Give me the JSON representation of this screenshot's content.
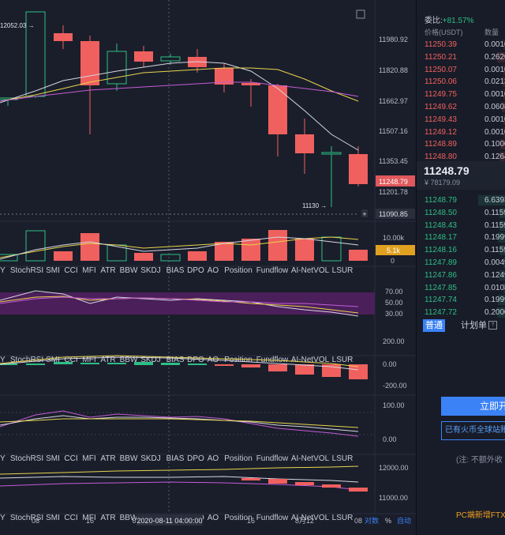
{
  "chart": {
    "price_axis": [
      "11980.92",
      "11820.88",
      "11662.97",
      "11507.16",
      "11353.45",
      "11201.78",
      "11090.85"
    ],
    "current_price_tag": "11248.79",
    "high_marker": "12052.03",
    "low_marker": "11130",
    "crosshair_price": "11090.85",
    "volume_axis": [
      "10.00k",
      "0"
    ],
    "volume_tag": "5.1k",
    "stochrsi_axis": [
      "70.00",
      "50.00",
      "30.00"
    ],
    "macd_axis": [
      "200.00",
      "0.00",
      "-200.00"
    ],
    "kdj_axis": [
      "100.00",
      "0.00"
    ],
    "price2_axis": [
      "12000.00",
      "11000.00"
    ],
    "indicator_tabs": [
      "Y",
      "StochRSI",
      "SMI",
      "CCI",
      "MFI",
      "ATR",
      "BBW",
      "SKDJ",
      "BIAS",
      "DPO",
      "AO",
      "Position",
      "Fundflow",
      "AI-NetVOL",
      "LSUR"
    ],
    "date_axis": [
      "08",
      "16",
      "16",
      "8月12",
      "08"
    ],
    "crosshair_date_prefix": "6",
    "crosshair_date": "2020-08-11 04:00:00",
    "log_label": "对数",
    "percent_label": "%",
    "auto_label": "自动",
    "colors": {
      "up": "#2ebd85",
      "down": "#f0605e",
      "accent": "#3b82f6"
    }
  },
  "orderbook": {
    "title": "委比:",
    "ratio": "+81.57%",
    "header_price": "价格(USDT)",
    "header_qty": "数量",
    "asks": [
      {
        "price": "11250.39",
        "qty": "0.0010",
        "depth": 0.05
      },
      {
        "price": "11250.21",
        "qty": "0.2620",
        "depth": 0.3
      },
      {
        "price": "11250.07",
        "qty": "0.0010",
        "depth": 0.05
      },
      {
        "price": "11250.06",
        "qty": "0.0213",
        "depth": 0.08
      },
      {
        "price": "11249.75",
        "qty": "0.0010",
        "depth": 0.05
      },
      {
        "price": "11249.62",
        "qty": "0.0608",
        "depth": 0.12
      },
      {
        "price": "11249.43",
        "qty": "0.0010",
        "depth": 0.05
      },
      {
        "price": "11249.12",
        "qty": "0.0010",
        "depth": 0.05
      },
      {
        "price": "11248.89",
        "qty": "0.1000",
        "depth": 0.18
      },
      {
        "price": "11248.80",
        "qty": "0.1264",
        "depth": 0.22
      }
    ],
    "last_price": "11248.79",
    "last_price_cny": "¥ 78179.09",
    "bids": [
      {
        "price": "11248.79",
        "qty": "6.6393",
        "depth": 1.0
      },
      {
        "price": "11248.50",
        "qty": "0.1159",
        "depth": 0.2
      },
      {
        "price": "11248.43",
        "qty": "0.1159",
        "depth": 0.2
      },
      {
        "price": "11248.17",
        "qty": "0.1999",
        "depth": 0.25
      },
      {
        "price": "11248.16",
        "qty": "0.1159",
        "depth": 0.2
      },
      {
        "price": "11247.89",
        "qty": "0.0049",
        "depth": 0.05
      },
      {
        "price": "11247.86",
        "qty": "0.1249",
        "depth": 0.22
      },
      {
        "price": "11247.85",
        "qty": "0.0108",
        "depth": 0.06
      },
      {
        "price": "11247.74",
        "qty": "0.1999",
        "depth": 0.25
      },
      {
        "price": "11247.72",
        "qty": "0.2000",
        "depth": 0.28
      }
    ],
    "tab_normal": "普通",
    "tab_plan": "计划单",
    "help": "?",
    "open_button": "立即开",
    "notice": "已有火币全球站账",
    "footnote": "(注: 不额外收",
    "promo": "PC端新增FTX"
  }
}
